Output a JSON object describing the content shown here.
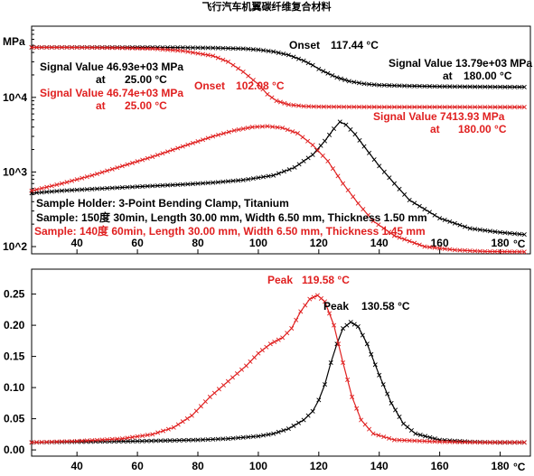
{
  "chart_data": [
    {
      "type": "line",
      "title": "飞行汽车机翼碳纤维复合材料",
      "ylabel": "MPa",
      "xlabel_unit": "°C",
      "yscale": "log",
      "xlim": [
        25,
        190
      ],
      "ylim": [
        80,
        90000
      ],
      "x_ticks": [
        "40",
        "60",
        "80",
        "100",
        "120",
        "140",
        "160",
        "180"
      ],
      "y_ticks": [
        {
          "value": 10000,
          "label": "10^4"
        },
        {
          "value": 1000,
          "label": "10^3"
        },
        {
          "value": 100,
          "label": "10^2"
        }
      ],
      "grid": false,
      "series": [
        {
          "color": "#000000",
          "marker": "x",
          "points": [
            [
              25,
              46930
            ],
            [
              35,
              46930
            ],
            [
              45,
              46900
            ],
            [
              55,
              46800
            ],
            [
              65,
              46700
            ],
            [
              75,
              46500
            ],
            [
              85,
              46000
            ],
            [
              95,
              45000
            ],
            [
              100,
              43500
            ],
            [
              105,
              41000
            ],
            [
              110,
              37000
            ],
            [
              115,
              31000
            ],
            [
              118,
              27000
            ],
            [
              120,
              24000
            ],
            [
              123,
              21000
            ],
            [
              126,
              18500
            ],
            [
              130,
              16500
            ],
            [
              135,
              15200
            ],
            [
              140,
              14600
            ],
            [
              150,
              14200
            ],
            [
              160,
              14000
            ],
            [
              170,
              13900
            ],
            [
              180,
              13790
            ],
            [
              188,
              13760
            ]
          ]
        },
        {
          "color": "#000000",
          "marker": "x",
          "points": [
            [
              25,
              520
            ],
            [
              35,
              560
            ],
            [
              45,
              590
            ],
            [
              55,
              620
            ],
            [
              65,
              650
            ],
            [
              75,
              680
            ],
            [
              85,
              720
            ],
            [
              95,
              780
            ],
            [
              105,
              900
            ],
            [
              112,
              1150
            ],
            [
              118,
              1700
            ],
            [
              122,
              2600
            ],
            [
              125,
              3800
            ],
            [
              127,
              4700
            ],
            [
              129,
              4300
            ],
            [
              132,
              3200
            ],
            [
              135,
              2200
            ],
            [
              140,
              1200
            ],
            [
              145,
              700
            ],
            [
              150,
              420
            ],
            [
              160,
              240
            ],
            [
              170,
              175
            ],
            [
              180,
              155
            ],
            [
              188,
              145
            ]
          ]
        },
        {
          "color": "#e02020",
          "marker": "x",
          "points": [
            [
              25,
              46740
            ],
            [
              35,
              46740
            ],
            [
              45,
              46500
            ],
            [
              55,
              46000
            ],
            [
              65,
              45000
            ],
            [
              75,
              42000
            ],
            [
              85,
              36000
            ],
            [
              90,
              30000
            ],
            [
              95,
              22000
            ],
            [
              100,
              15000
            ],
            [
              103,
              11000
            ],
            [
              106,
              9000
            ],
            [
              110,
              8000
            ],
            [
              115,
              7600
            ],
            [
              120,
              7500
            ],
            [
              130,
              7450
            ],
            [
              140,
              7430
            ],
            [
              150,
              7420
            ],
            [
              160,
              7420
            ],
            [
              170,
              7415
            ],
            [
              180,
              7414
            ],
            [
              188,
              7413
            ]
          ]
        },
        {
          "color": "#e02020",
          "marker": "x",
          "points": [
            [
              25,
              560
            ],
            [
              35,
              700
            ],
            [
              45,
              900
            ],
            [
              55,
              1200
            ],
            [
              65,
              1600
            ],
            [
              75,
              2200
            ],
            [
              85,
              3000
            ],
            [
              92,
              3600
            ],
            [
              98,
              4000
            ],
            [
              103,
              4100
            ],
            [
              108,
              3900
            ],
            [
              113,
              3300
            ],
            [
              118,
              2300
            ],
            [
              123,
              1400
            ],
            [
              128,
              700
            ],
            [
              133,
              380
            ],
            [
              138,
              220
            ],
            [
              145,
              140
            ],
            [
              155,
              100
            ],
            [
              165,
              90
            ],
            [
              175,
              86
            ],
            [
              188,
              85
            ]
          ]
        }
      ],
      "annotations": [
        {
          "text": "Onset",
          "value": "117.44 °C",
          "color": "#000000"
        },
        {
          "text": "Signal Value 13.79e+03 MPa",
          "text2": "at",
          "value": "180.00 °C",
          "color": "#000000"
        },
        {
          "text": "Signal Value 46.93e+03 MPa",
          "text2": "at",
          "value": "25.00 °C",
          "color": "#000000"
        },
        {
          "text": "Signal Value 46.74e+03 MPa",
          "text2": "at",
          "value": "25.00 °C",
          "color": "#e02020"
        },
        {
          "text": "Onset",
          "value": "102.08 °C",
          "color": "#e02020"
        },
        {
          "text": "Signal Value 7413.93 MPa",
          "text2": "at",
          "value": "180.00 °C",
          "color": "#e02020"
        }
      ],
      "info": [
        {
          "text": "Sample Holder: 3-Point Bending Clamp, Titanium",
          "color": "#000000"
        },
        {
          "text": "Sample: 150度 30min, Length 30.00 mm, Width 6.50 mm, Thickness 1.50 mm",
          "color": "#000000"
        },
        {
          "text": "Sample: 140度 60min, Length 30.00 mm, Width 6.50 mm, Thickness 1.45 mm",
          "color": "#e02020"
        }
      ]
    },
    {
      "type": "line",
      "xlabel_unit": "°C",
      "xlim": [
        25,
        190
      ],
      "ylim": [
        -0.01,
        0.29
      ],
      "x_ticks": [
        "40",
        "60",
        "80",
        "100",
        "120",
        "140",
        "160",
        "180"
      ],
      "y_ticks": [
        "0.25",
        "0.20",
        "0.15",
        "0.10",
        "0.05",
        "0.00"
      ],
      "y_tick_values": [
        0.25,
        0.2,
        0.15,
        0.1,
        0.05,
        0.0
      ],
      "grid": false,
      "series": [
        {
          "color": "#000000",
          "marker": "x",
          "points": [
            [
              25,
              0.012
            ],
            [
              40,
              0.013
            ],
            [
              60,
              0.014
            ],
            [
              80,
              0.016
            ],
            [
              90,
              0.018
            ],
            [
              100,
              0.022
            ],
            [
              105,
              0.026
            ],
            [
              110,
              0.034
            ],
            [
              115,
              0.048
            ],
            [
              118,
              0.062
            ],
            [
              120,
              0.08
            ],
            [
              122,
              0.105
            ],
            [
              124,
              0.14
            ],
            [
              126,
              0.17
            ],
            [
              128,
              0.195
            ],
            [
              130.58,
              0.205
            ],
            [
              133,
              0.198
            ],
            [
              136,
              0.17
            ],
            [
              140,
              0.12
            ],
            [
              144,
              0.075
            ],
            [
              148,
              0.042
            ],
            [
              152,
              0.026
            ],
            [
              160,
              0.016
            ],
            [
              170,
              0.013
            ],
            [
              180,
              0.012
            ],
            [
              188,
              0.012
            ]
          ]
        },
        {
          "color": "#e02020",
          "marker": "x",
          "points": [
            [
              25,
              0.012
            ],
            [
              40,
              0.014
            ],
            [
              55,
              0.018
            ],
            [
              65,
              0.025
            ],
            [
              72,
              0.036
            ],
            [
              78,
              0.055
            ],
            [
              84,
              0.085
            ],
            [
              90,
              0.11
            ],
            [
              96,
              0.135
            ],
            [
              100,
              0.155
            ],
            [
              104,
              0.17
            ],
            [
              108,
              0.18
            ],
            [
              111,
              0.195
            ],
            [
              114,
              0.222
            ],
            [
              117,
              0.242
            ],
            [
              119.58,
              0.248
            ],
            [
              122,
              0.238
            ],
            [
              125,
              0.2
            ],
            [
              128,
              0.14
            ],
            [
              131,
              0.085
            ],
            [
              134,
              0.048
            ],
            [
              138,
              0.026
            ],
            [
              145,
              0.016
            ],
            [
              160,
              0.013
            ],
            [
              175,
              0.012
            ],
            [
              188,
              0.012
            ]
          ]
        }
      ],
      "annotations": [
        {
          "text": "Peak",
          "value": "119.58 °C",
          "color": "#e02020"
        },
        {
          "text": "Peak",
          "value": "130.58 °C",
          "color": "#000000"
        }
      ]
    }
  ]
}
